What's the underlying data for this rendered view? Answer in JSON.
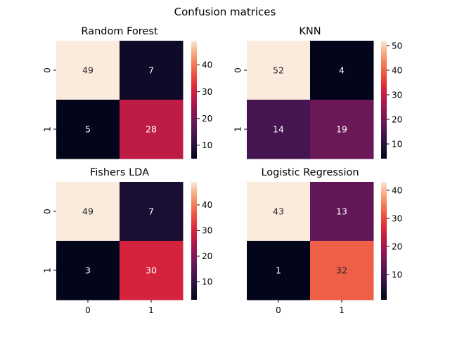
{
  "figure_title": "Confusion matrices",
  "chart_data": [
    {
      "type": "heatmap",
      "title": "Random Forest",
      "x_tick_labels": [
        "0",
        "1"
      ],
      "y_tick_labels": [
        "0",
        "1"
      ],
      "show_x_ticks": false,
      "show_y_ticks": true,
      "values": [
        [
          49,
          7
        ],
        [
          5,
          28
        ]
      ],
      "colorbar_ticks": [
        10,
        20,
        30,
        40
      ],
      "vmin": 5,
      "vmax": 49
    },
    {
      "type": "heatmap",
      "title": "KNN",
      "x_tick_labels": [
        "0",
        "1"
      ],
      "y_tick_labels": [
        "0",
        "1"
      ],
      "show_x_ticks": false,
      "show_y_ticks": true,
      "values": [
        [
          52,
          4
        ],
        [
          14,
          19
        ]
      ],
      "colorbar_ticks": [
        10,
        20,
        30,
        40,
        50
      ],
      "vmin": 4,
      "vmax": 52
    },
    {
      "type": "heatmap",
      "title": "Fishers LDA",
      "x_tick_labels": [
        "0",
        "1"
      ],
      "y_tick_labels": [
        "0",
        "1"
      ],
      "show_x_ticks": true,
      "show_y_ticks": true,
      "values": [
        [
          49,
          7
        ],
        [
          3,
          30
        ]
      ],
      "colorbar_ticks": [
        10,
        20,
        30,
        40
      ],
      "vmin": 3,
      "vmax": 49
    },
    {
      "type": "heatmap",
      "title": "Logistic Regression",
      "x_tick_labels": [
        "0",
        "1"
      ],
      "y_tick_labels": [
        "0",
        "1"
      ],
      "show_x_ticks": true,
      "show_y_ticks": false,
      "values": [
        [
          43,
          13
        ],
        [
          1,
          32
        ]
      ],
      "colorbar_ticks": [
        10,
        20,
        30,
        40
      ],
      "vmin": 1,
      "vmax": 43
    }
  ],
  "colormap": "rocket",
  "colors": {
    "annot_dark": "#262626",
    "annot_light": "#ffffff",
    "tick": "#000000"
  }
}
